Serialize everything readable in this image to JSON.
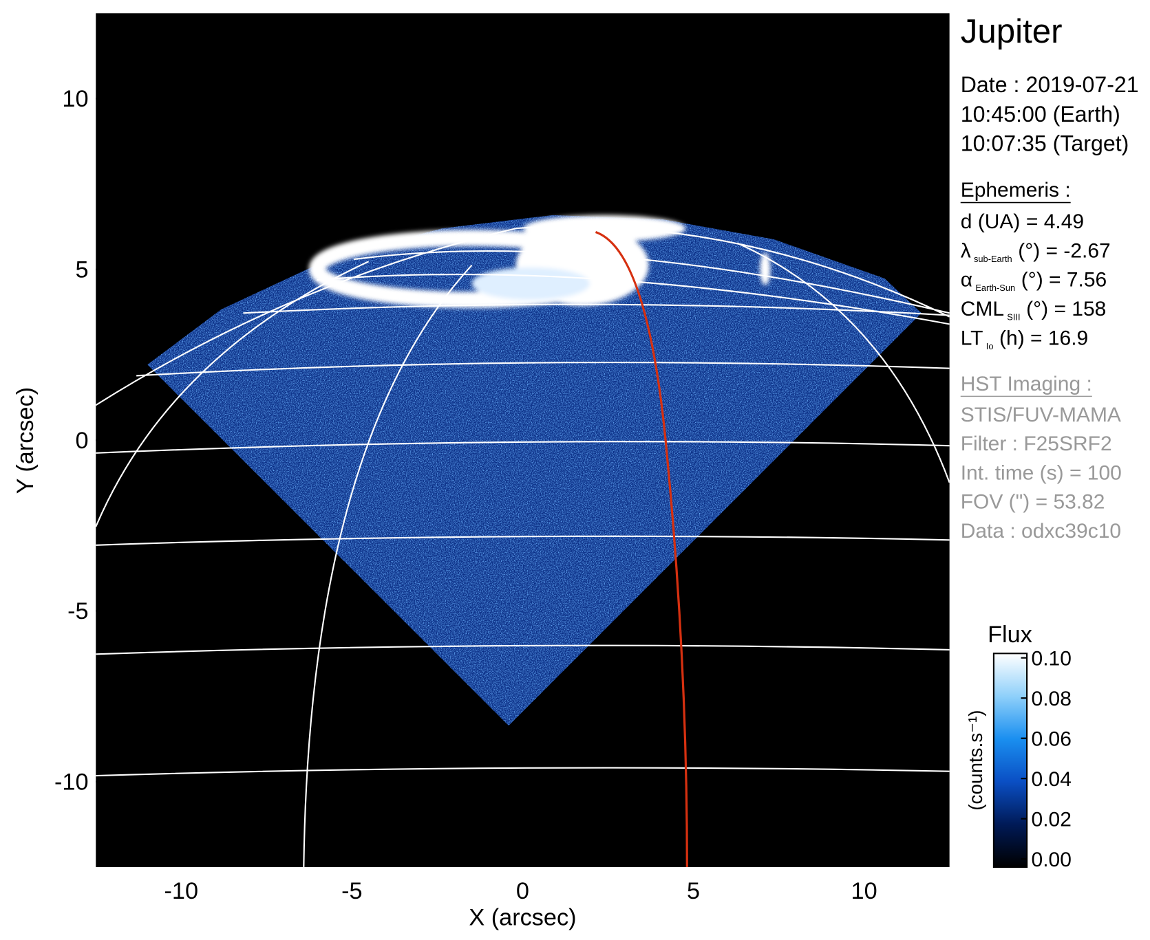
{
  "chart_data": {
    "type": "image",
    "title": "Jupiter",
    "xlabel": "X (arcsec)",
    "ylabel": "Y (arcsec)",
    "xlim": [
      -12.5,
      12.5
    ],
    "ylim": [
      -12.5,
      12.5
    ],
    "xticks": [
      -10,
      -5,
      0,
      5,
      10
    ],
    "yticks": [
      -10,
      -5,
      0,
      5,
      10
    ],
    "colorbar": {
      "title": "Flux",
      "label": "(counts.s⁻¹)",
      "lim": [
        0,
        0.1
      ],
      "colormap": [
        "#000000",
        "#001a57",
        "#0a4fc4",
        "#1a8ff0",
        "#8fd0fa",
        "#ffffff"
      ],
      "ticks": [
        {
          "value": 0,
          "label": "0.00"
        },
        {
          "value": 0.02,
          "label": "0.02"
        },
        {
          "value": 0.04,
          "label": "0.04"
        },
        {
          "value": 0.06,
          "label": "0.06"
        },
        {
          "value": 0.08,
          "label": "0.08"
        },
        {
          "value": 0.1,
          "label": "0.10"
        }
      ]
    },
    "observation": [
      "Date : 2019-07-21",
      "10:45:00 (Earth)",
      "10:07:35 (Target)"
    ],
    "ephemeris": {
      "title": "Ephemeris :",
      "items": [
        {
          "main": "d (UA)",
          "rest": "= 4.49"
        },
        {
          "main": "λ",
          "sub": "sub-Earth",
          "rest": "(°) = -2.67"
        },
        {
          "main": "α",
          "sub": "Earth-Sun",
          "rest": "(°) = 7.56"
        },
        {
          "main": "CML",
          "sub": "SIII",
          "rest": "(°) = 158"
        },
        {
          "main": "LT",
          "sub": "Io",
          "rest": "(h) = 16.9"
        }
      ]
    },
    "imaging": {
      "title": "HST Imaging :",
      "items": [
        "STIS/FUV-MAMA",
        "Filter : F25SRF2",
        "Int. time (s) = 100",
        "FOV (\") = 53.82",
        "Data : odxc39c10"
      ]
    }
  }
}
